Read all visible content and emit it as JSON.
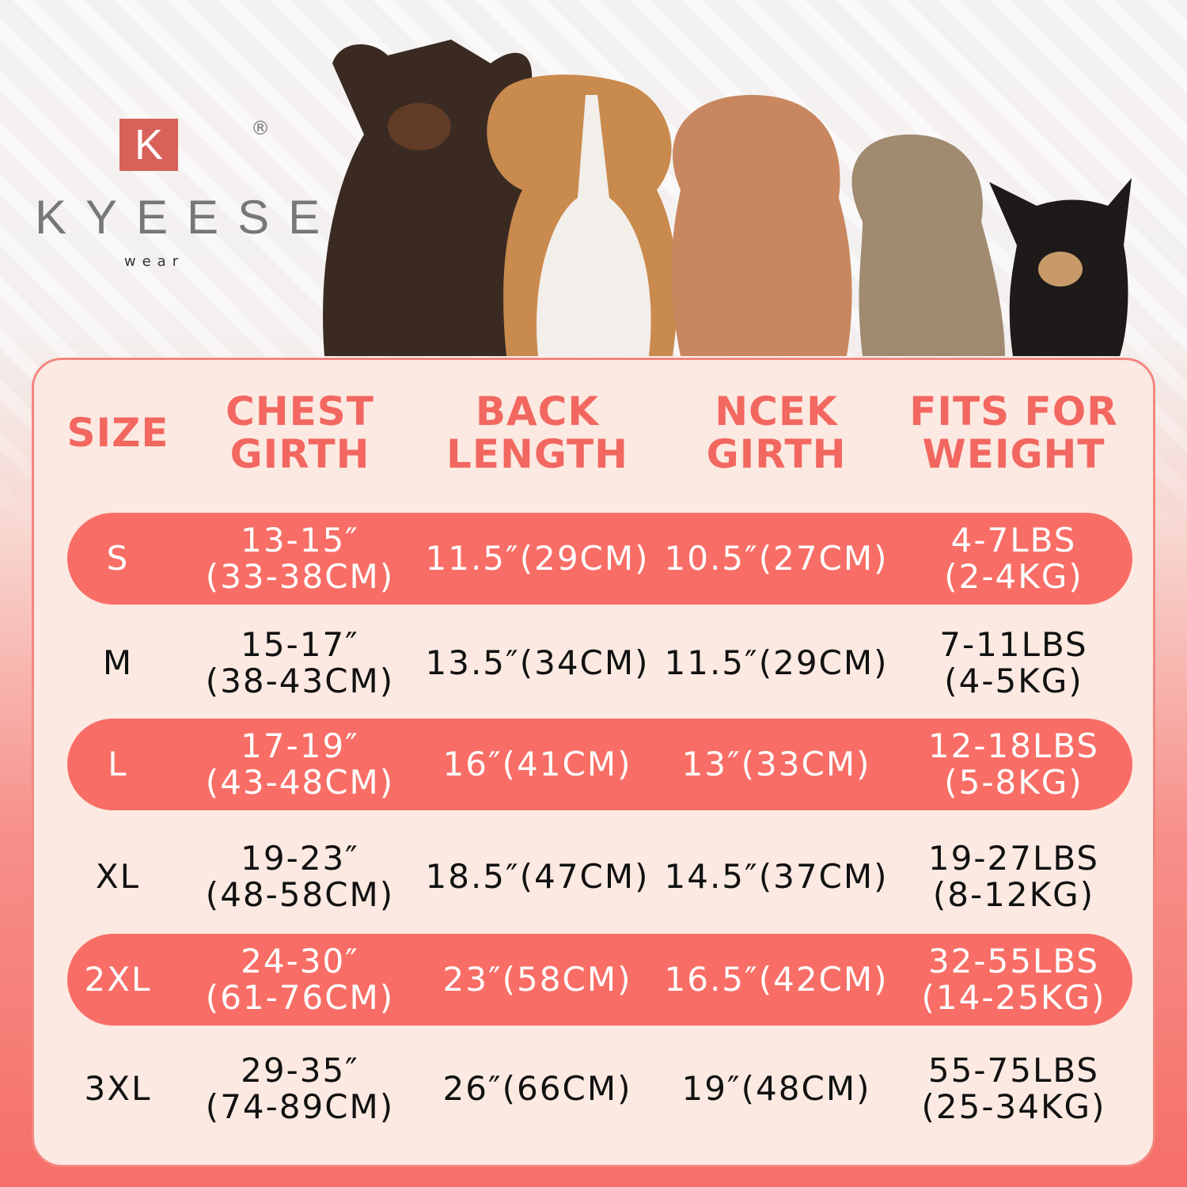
{
  "brand": {
    "logo_letter": "K",
    "name": "KYEESE",
    "sub": "wear",
    "registered": "®",
    "accent": "#d8615a"
  },
  "colors": {
    "header_text": "#f2675f",
    "highlight_row": "#f86e66",
    "panel": "#fbe9e2"
  },
  "table": {
    "headers": [
      [
        "SIZE"
      ],
      [
        "CHEST",
        "GIRTH"
      ],
      [
        "BACK",
        "LENGTH"
      ],
      [
        "NCEK",
        "GIRTH"
      ],
      [
        "FITS FOR",
        "WEIGHT"
      ]
    ],
    "rows": [
      {
        "size": "S",
        "chest": [
          "13-15″",
          "(33-38CM)"
        ],
        "back": "11.5″(29CM)",
        "neck": "10.5″(27CM)",
        "weight": [
          "4-7LBS",
          "(2-4KG)"
        ],
        "highlight": true
      },
      {
        "size": "M",
        "chest": [
          "15-17″",
          "(38-43CM)"
        ],
        "back": "13.5″(34CM)",
        "neck": "11.5″(29CM)",
        "weight": [
          "7-11LBS",
          "(4-5KG)"
        ],
        "highlight": false
      },
      {
        "size": "L",
        "chest": [
          "17-19″",
          "(43-48CM)"
        ],
        "back": "16″(41CM)",
        "neck": "13″(33CM)",
        "weight": [
          "12-18LBS",
          "(5-8KG)"
        ],
        "highlight": true
      },
      {
        "size": "XL",
        "chest": [
          "19-23″",
          "(48-58CM)"
        ],
        "back": "18.5″(47CM)",
        "neck": "14.5″(37CM)",
        "weight": [
          "19-27LBS",
          "(8-12KG)"
        ],
        "highlight": false
      },
      {
        "size": "2XL",
        "chest": [
          "24-30″",
          "(61-76CM)"
        ],
        "back": "23″(58CM)",
        "neck": "16.5″(42CM)",
        "weight": [
          "32-55LBS",
          "(14-25KG)"
        ],
        "highlight": true
      },
      {
        "size": "3XL",
        "chest": [
          "29-35″",
          "(74-89CM)"
        ],
        "back": "26″(66CM)",
        "neck": "19″(48CM)",
        "weight": [
          "55-75LBS",
          "(25-34KG)"
        ],
        "highlight": false
      }
    ]
  }
}
